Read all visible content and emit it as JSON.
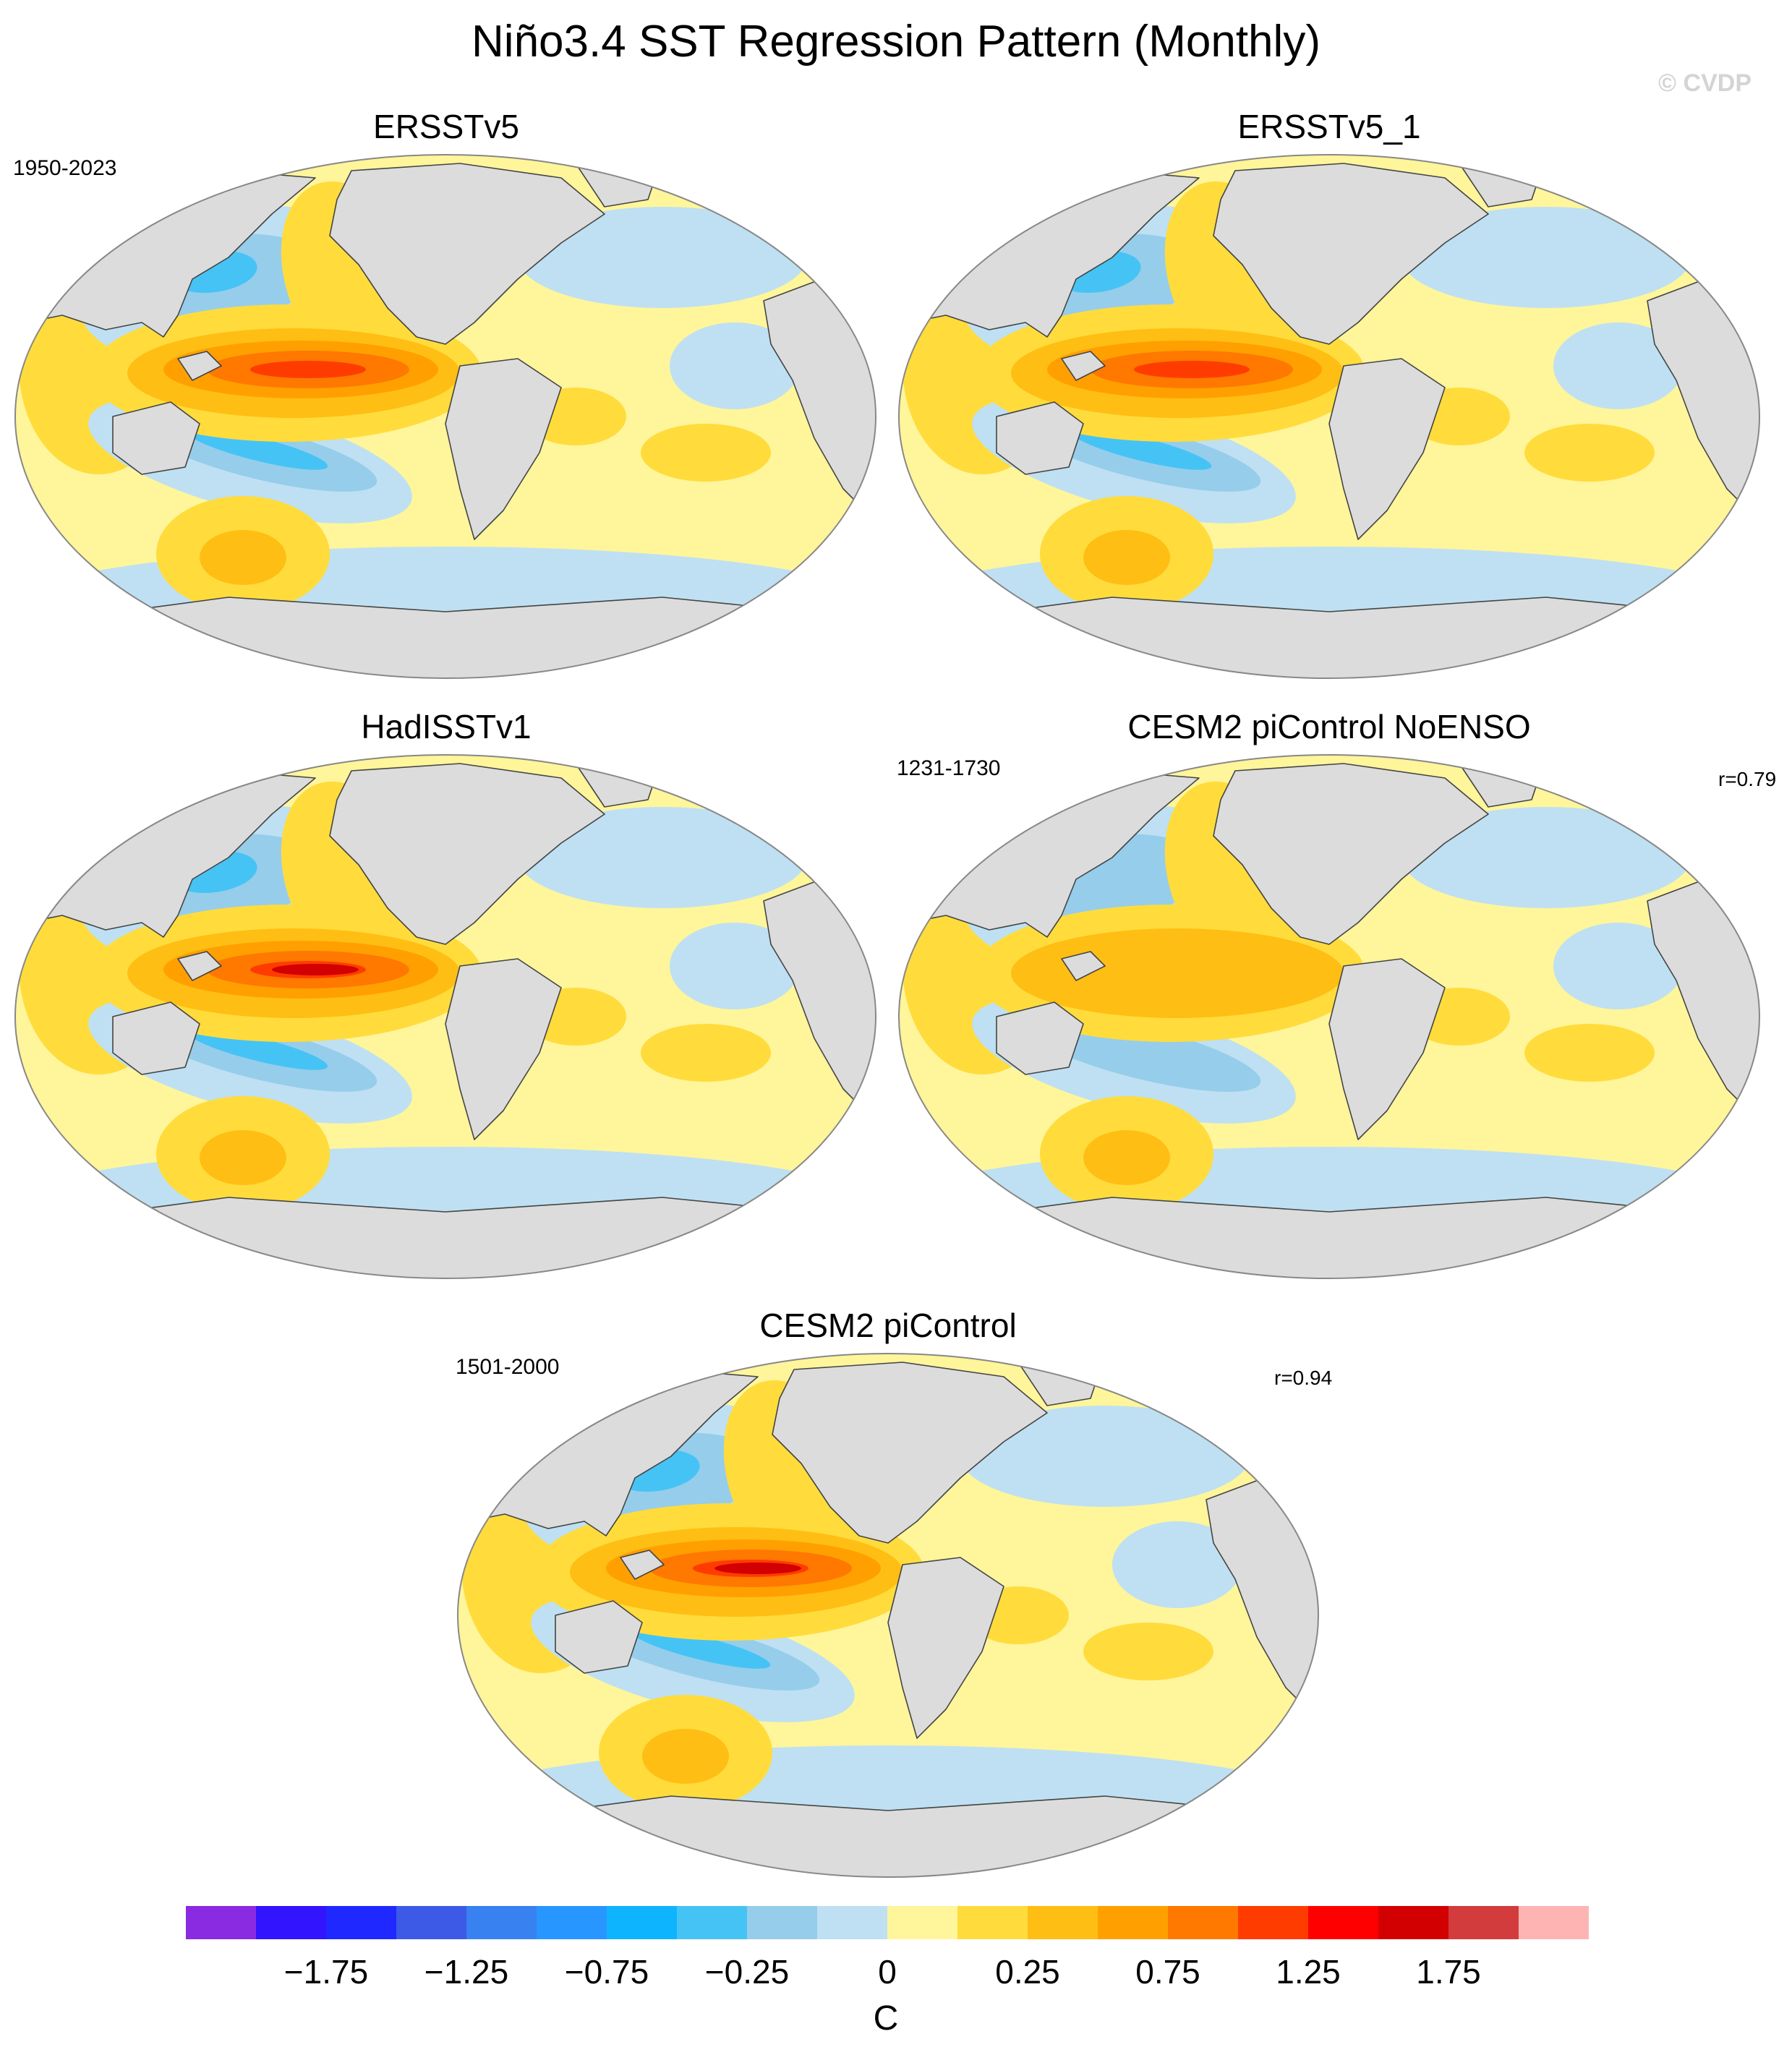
{
  "title": "Niño3.4 SST Regression Pattern (Monthly)",
  "watermark": "© CVDP",
  "panels": [
    {
      "title": "ERSSTv5",
      "years": "1950-2023",
      "corr": "",
      "variant": "obs_a"
    },
    {
      "title": "ERSSTv5_1",
      "years": "",
      "corr": "",
      "variant": "obs_b"
    },
    {
      "title": "HadISSTv1",
      "years": "",
      "corr": "",
      "variant": "had"
    },
    {
      "title": "CESM2 piControl NoENSO",
      "years": "1231-1730",
      "corr": "r=0.79",
      "variant": "noenso"
    },
    {
      "title": "CESM2 piControl",
      "years": "1501-2000",
      "corr": "r=0.94",
      "variant": "model"
    }
  ],
  "colorbar": {
    "unit": "C",
    "colors": [
      "#8a2be2",
      "#3214ff",
      "#1e28ff",
      "#3c5ae6",
      "#3782f0",
      "#2896ff",
      "#0fb4ff",
      "#46c3f5",
      "#96cdeb",
      "#bee0f2",
      "#fff59b",
      "#ffdc3c",
      "#ffbe14",
      "#ffa000",
      "#ff7800",
      "#ff3c00",
      "#ff0000",
      "#d20000",
      "#d23c3c",
      "#ffb4b4"
    ],
    "labels": [
      "-1.75",
      "-1.25",
      "-0.75",
      "-0.25",
      "0",
      "0.25",
      "0.75",
      "1.25",
      "1.75"
    ]
  }
}
